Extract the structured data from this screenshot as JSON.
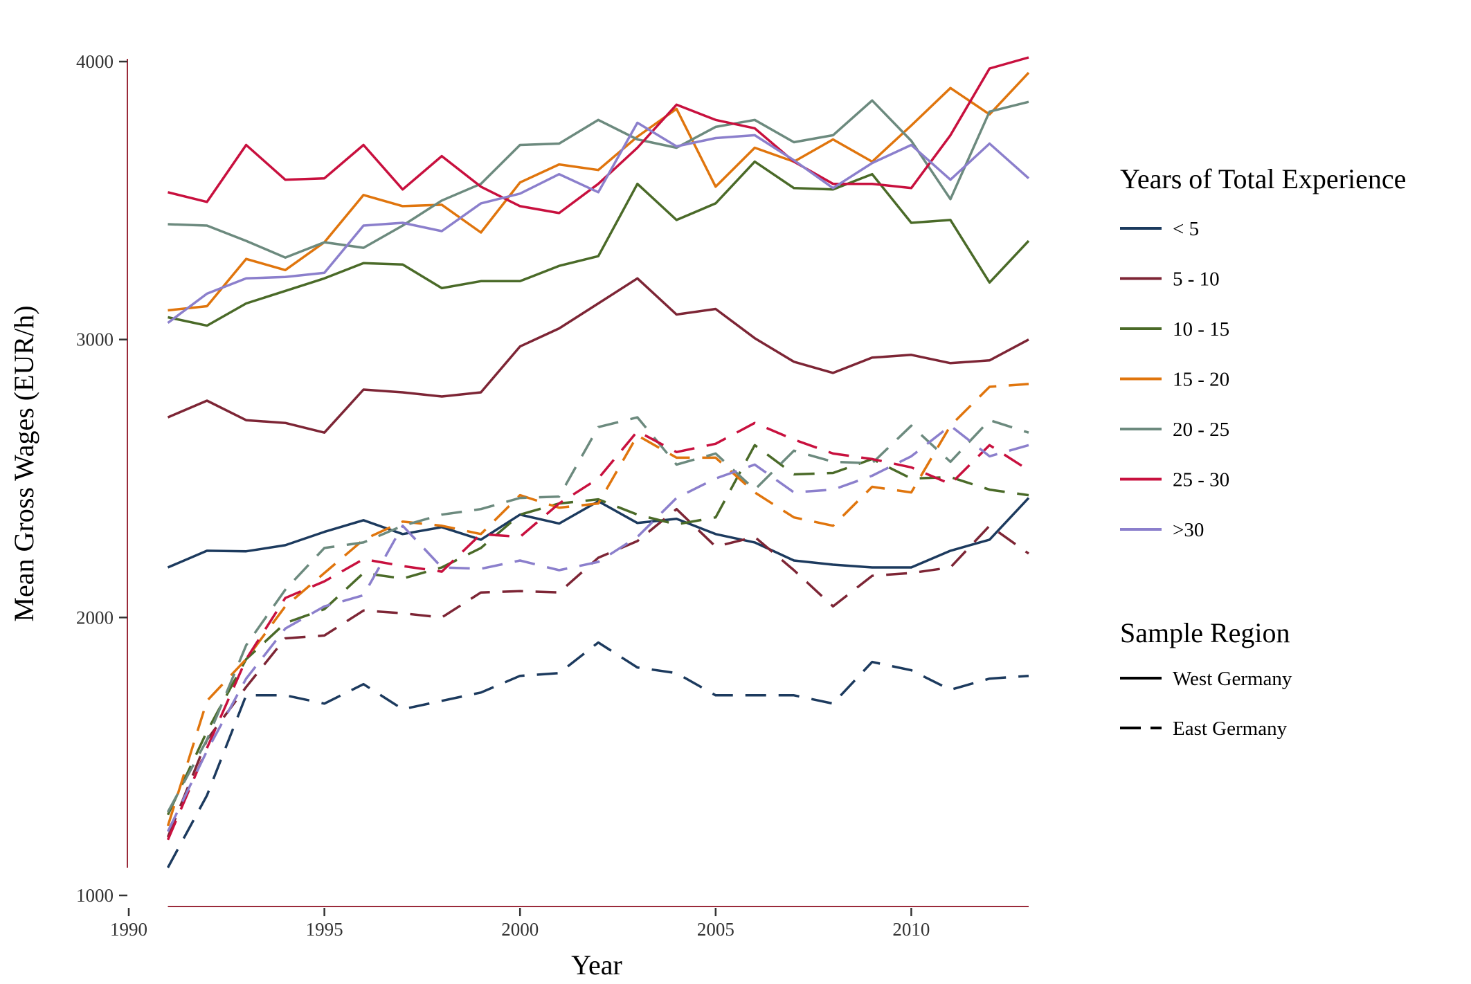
{
  "chart_data": {
    "type": "line",
    "title": "",
    "xlabel": "Year",
    "ylabel": "Mean Gross Wages (EUR/h)",
    "xlim": [
      1990,
      2013
    ],
    "ylim": [
      1000,
      4000
    ],
    "xticks": [
      1990,
      1995,
      2000,
      2005,
      2010
    ],
    "yticks": [
      1000,
      2000,
      3000,
      4000
    ],
    "grid": false,
    "legend_position": "right",
    "x": [
      1991,
      1992,
      1993,
      1994,
      1995,
      1996,
      1997,
      1998,
      1999,
      2000,
      2001,
      2002,
      2003,
      2004,
      2005,
      2006,
      2007,
      2008,
      2009,
      2010,
      2011,
      2012,
      2013
    ],
    "legend_experience": {
      "title": "Years of Total Experience",
      "entries": [
        {
          "label": "< 5",
          "color": "#1c3a5e"
        },
        {
          "label": "5 - 10",
          "color": "#7d2535"
        },
        {
          "label": "10 - 15",
          "color": "#4a6a28"
        },
        {
          "label": "15 - 20",
          "color": "#e0750d"
        },
        {
          "label": "20 - 25",
          "color": "#6c8a7e"
        },
        {
          "label": "25 - 30",
          "color": "#c8103e"
        },
        {
          "label": ">30",
          "color": "#8b7fcc"
        }
      ]
    },
    "legend_region": {
      "title": "Sample Region",
      "entries": [
        {
          "label": "West Germany",
          "dash": "solid"
        },
        {
          "label": "East Germany",
          "dash": "dashed"
        }
      ]
    },
    "series": [
      {
        "group": "< 5",
        "region": "West Germany",
        "color": "#1c3a5e",
        "dash": "solid",
        "values": [
          2180,
          2240,
          2238,
          2260,
          2308,
          2350,
          2300,
          2325,
          2280,
          2370,
          2338,
          2418,
          2340,
          2355,
          2300,
          2270,
          2205,
          2190,
          2180,
          2180,
          2240,
          2280,
          2430
        ]
      },
      {
        "group": "5 - 10",
        "region": "West Germany",
        "color": "#7d2535",
        "dash": "solid",
        "values": [
          2720,
          2780,
          2710,
          2700,
          2665,
          2820,
          2810,
          2795,
          2810,
          2975,
          3040,
          3130,
          3220,
          3090,
          3110,
          3005,
          2920,
          2880,
          2935,
          2945,
          2915,
          2925,
          3000
        ]
      },
      {
        "group": "10 - 15",
        "region": "West Germany",
        "color": "#4a6a28",
        "dash": "solid",
        "values": [
          3080,
          3050,
          3130,
          3175,
          3220,
          3275,
          3270,
          3185,
          3210,
          3210,
          3265,
          3300,
          3560,
          3430,
          3490,
          3640,
          3545,
          3540,
          3595,
          3420,
          3430,
          3205,
          3355
        ]
      },
      {
        "group": "15 - 20",
        "region": "West Germany",
        "color": "#e0750d",
        "dash": "solid",
        "values": [
          3105,
          3120,
          3290,
          3250,
          3350,
          3520,
          3480,
          3485,
          3385,
          3565,
          3630,
          3610,
          3730,
          3830,
          3550,
          3690,
          3640,
          3720,
          3640,
          3770,
          3905,
          3810,
          3960
        ]
      },
      {
        "group": "20 - 25",
        "region": "West Germany",
        "color": "#6c8a7e",
        "dash": "solid",
        "values": [
          3415,
          3410,
          3355,
          3295,
          3350,
          3330,
          3410,
          3500,
          3560,
          3700,
          3705,
          3790,
          3720,
          3690,
          3765,
          3790,
          3710,
          3735,
          3860,
          3715,
          3505,
          3820,
          3855
        ]
      },
      {
        "group": "25 - 30",
        "region": "West Germany",
        "color": "#c8103e",
        "dash": "solid",
        "values": [
          3530,
          3495,
          3700,
          3575,
          3580,
          3700,
          3540,
          3660,
          3550,
          3480,
          3455,
          3560,
          3690,
          3845,
          3790,
          3760,
          3640,
          3560,
          3560,
          3545,
          3735,
          3975,
          4015
        ]
      },
      {
        "group": ">30",
        "region": "West Germany",
        "color": "#8b7fcc",
        "dash": "solid",
        "values": [
          3060,
          3165,
          3220,
          3225,
          3240,
          3410,
          3420,
          3390,
          3490,
          3525,
          3595,
          3530,
          3780,
          3695,
          3725,
          3735,
          3645,
          3545,
          3635,
          3700,
          3575,
          3705,
          3580
        ]
      },
      {
        "group": "< 5",
        "region": "East Germany",
        "color": "#1c3a5e",
        "dash": "dashed",
        "values": [
          1100,
          1360,
          1720,
          1720,
          1690,
          1760,
          1670,
          1700,
          1730,
          1790,
          1800,
          1910,
          1820,
          1800,
          1720,
          1720,
          1720,
          1690,
          1840,
          1810,
          1740,
          1780,
          1790
        ]
      },
      {
        "group": "5 - 10",
        "region": "East Germany",
        "color": "#7d2535",
        "dash": "dashed",
        "values": [
          1210,
          1560,
          1750,
          1925,
          1935,
          2025,
          2015,
          2000,
          2090,
          2095,
          2090,
          2215,
          2275,
          2390,
          2255,
          2290,
          2170,
          2040,
          2150,
          2160,
          2180,
          2330,
          2230
        ]
      },
      {
        "group": "10 - 15",
        "region": "East Germany",
        "color": "#4a6a28",
        "dash": "dashed",
        "values": [
          1290,
          1590,
          1850,
          1980,
          2030,
          2160,
          2140,
          2180,
          2250,
          2370,
          2410,
          2425,
          2370,
          2335,
          2360,
          2620,
          2515,
          2520,
          2570,
          2500,
          2505,
          2460,
          2440
        ]
      },
      {
        "group": "15 - 20",
        "region": "East Germany",
        "color": "#e0750d",
        "dash": "dashed",
        "values": [
          1250,
          1700,
          1850,
          2040,
          2160,
          2280,
          2345,
          2330,
          2300,
          2440,
          2395,
          2410,
          2655,
          2575,
          2575,
          2450,
          2360,
          2330,
          2470,
          2450,
          2690,
          2830,
          2840
        ]
      },
      {
        "group": "20 - 25",
        "region": "East Germany",
        "color": "#6c8a7e",
        "dash": "dashed",
        "values": [
          1300,
          1560,
          1900,
          2100,
          2250,
          2270,
          2330,
          2370,
          2390,
          2430,
          2435,
          2685,
          2720,
          2550,
          2590,
          2460,
          2600,
          2560,
          2555,
          2690,
          2560,
          2710,
          2665
        ]
      },
      {
        "group": "25 - 30",
        "region": "East Germany",
        "color": "#c8103e",
        "dash": "dashed",
        "values": [
          1200,
          1530,
          1850,
          2070,
          2130,
          2210,
          2185,
          2165,
          2300,
          2290,
          2410,
          2500,
          2670,
          2595,
          2625,
          2700,
          2640,
          2590,
          2570,
          2540,
          2480,
          2620,
          2530
        ]
      },
      {
        "group": ">30",
        "region": "East Germany",
        "color": "#8b7fcc",
        "dash": "dashed",
        "values": [
          1230,
          1520,
          1780,
          1960,
          2040,
          2080,
          2330,
          2180,
          2175,
          2205,
          2170,
          2200,
          2290,
          2430,
          2500,
          2550,
          2450,
          2460,
          2510,
          2580,
          2690,
          2580,
          2620
        ]
      }
    ]
  }
}
